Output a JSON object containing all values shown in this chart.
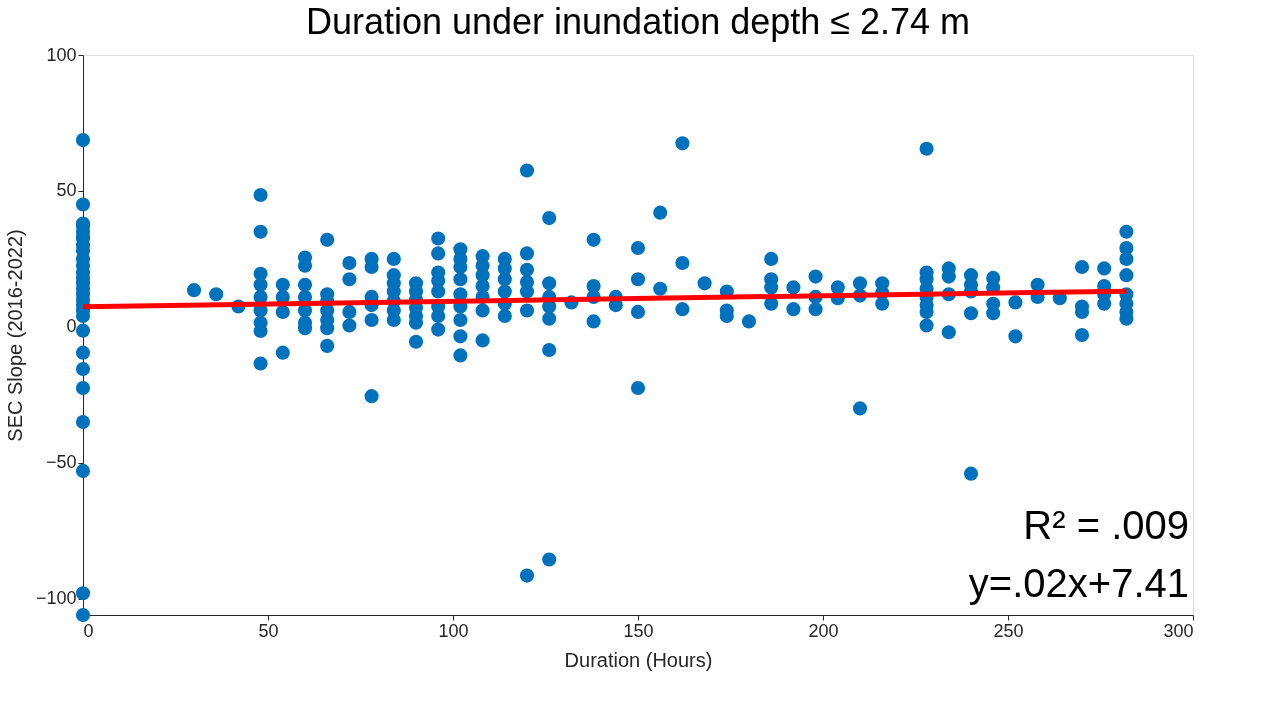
{
  "chart_data": {
    "type": "scatter",
    "title": "Duration under inundation depth ≤ 2.74 m",
    "xlabel": "Duration (Hours)",
    "ylabel": "SEC Slope (2016-2022)",
    "xlim": [
      0,
      300
    ],
    "xticks": [
      0,
      50,
      100,
      150,
      200,
      250,
      300
    ],
    "ylim": [
      -106,
      100
    ],
    "yticks": [
      -100,
      -50,
      0,
      50,
      100
    ],
    "annotations": [
      "R² = .009",
      "y=.02x+7.41"
    ],
    "series": [
      {
        "color": "#0072bd",
        "marker": "circle",
        "x": [
          0,
          0,
          0,
          0,
          0,
          0,
          0,
          0,
          0,
          0,
          0,
          0,
          0,
          0,
          0,
          0,
          0,
          0,
          0,
          0,
          0,
          0,
          0,
          0,
          0,
          0,
          0,
          0,
          30,
          36,
          42,
          48,
          48,
          48,
          48,
          48,
          48,
          48,
          48,
          48,
          54,
          54,
          54,
          54,
          60,
          60,
          60,
          60,
          60,
          60,
          60,
          66,
          66,
          66,
          66,
          66,
          66,
          66,
          72,
          72,
          72,
          72,
          78,
          78,
          78,
          78,
          78,
          78,
          84,
          84,
          84,
          84,
          84,
          84,
          84,
          90,
          90,
          90,
          90,
          90,
          90,
          90,
          96,
          96,
          96,
          96,
          96,
          96,
          96,
          96,
          102,
          102,
          102,
          102,
          102,
          102,
          102,
          102,
          102,
          108,
          108,
          108,
          108,
          108,
          108,
          108,
          114,
          114,
          114,
          114,
          114,
          114,
          120,
          120,
          120,
          120,
          120,
          120,
          120,
          126,
          126,
          126,
          126,
          126,
          126,
          126,
          132,
          138,
          138,
          138,
          138,
          144,
          144,
          150,
          150,
          150,
          150,
          156,
          156,
          162,
          162,
          162,
          168,
          174,
          174,
          174,
          180,
          186,
          186,
          186,
          186,
          192,
          192,
          198,
          198,
          198,
          204,
          204,
          210,
          210,
          210,
          216,
          216,
          216,
          228,
          228,
          228,
          228,
          228,
          228,
          228,
          228,
          234,
          234,
          234,
          234,
          240,
          240,
          240,
          240,
          240,
          246,
          246,
          246,
          246,
          252,
          252,
          258,
          258,
          264,
          270,
          270,
          270,
          270,
          276,
          276,
          276,
          276,
          282,
          282,
          282,
          282,
          282,
          282,
          282,
          282
        ],
        "values": [
          68.7,
          45,
          38,
          35,
          32.5,
          30,
          28,
          25,
          22.5,
          20,
          18,
          16,
          14,
          12,
          10,
          8,
          6,
          4,
          -1.4,
          -9.5,
          -15.5,
          -22.5,
          -35,
          -53,
          -98,
          -106,
          37,
          33,
          13.5,
          12,
          7.5,
          48.5,
          35,
          19.5,
          15.5,
          11,
          6,
          1.5,
          -1.5,
          -13.5,
          15.5,
          11,
          5.5,
          -9.5,
          25.5,
          22.5,
          15.5,
          11,
          6,
          1.5,
          -0.5,
          32,
          12,
          9.5,
          6,
          2.5,
          -0.5,
          -7,
          23.5,
          17.5,
          5.5,
          0.5,
          25,
          22,
          11,
          8,
          2.5,
          -25.5,
          25,
          19,
          16,
          13,
          9.5,
          6,
          2.5,
          16,
          13,
          10,
          7,
          4,
          1.5,
          -5.5,
          32.5,
          27,
          20,
          17,
          13,
          7.5,
          4,
          -1,
          28.5,
          25,
          22,
          17.5,
          12,
          7.5,
          2.5,
          -3.5,
          -10.5,
          26,
          22.5,
          19,
          15,
          11,
          6,
          -5,
          25,
          21.5,
          17.5,
          13,
          8.5,
          4,
          57.5,
          27,
          21,
          16.5,
          13,
          6,
          -91.5,
          40,
          16,
          11,
          7.5,
          3,
          -8.5,
          -85.6,
          9,
          32,
          15,
          11,
          2,
          11,
          8,
          29,
          17.5,
          5.5,
          -22.5,
          42,
          14,
          67.5,
          23.5,
          6.5,
          16,
          13,
          6,
          4,
          2,
          25,
          17.5,
          14.5,
          8.5,
          14.5,
          6.5,
          18.5,
          11,
          6.5,
          14.5,
          10.5,
          16,
          11.5,
          -30,
          16,
          12.5,
          8.5,
          65.5,
          20,
          17.5,
          14,
          11,
          8,
          5.5,
          0.5,
          21.5,
          18.5,
          12,
          -2,
          19,
          15.5,
          13,
          5,
          -54,
          18,
          14.5,
          8.5,
          5,
          9,
          -3.5,
          15.5,
          11,
          10.5,
          22,
          7.5,
          5.5,
          -3,
          21.5,
          15,
          12,
          8.5,
          35,
          29,
          25,
          19,
          12,
          8.5,
          5.5,
          3
        ]
      },
      {
        "type": "line",
        "color": "#ff0000",
        "x": [
          0,
          282
        ],
        "values": [
          7.4,
          13.1
        ],
        "marker": "none"
      }
    ]
  }
}
